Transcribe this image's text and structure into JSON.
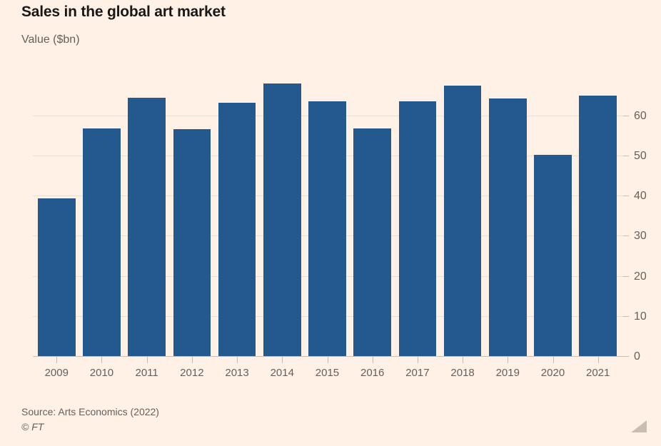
{
  "header": {
    "title": "Sales in the global art market",
    "subtitle": "Value ($bn)"
  },
  "chart_data": {
    "type": "bar",
    "title": "Sales in the global art market",
    "ylabel": "Value ($bn)",
    "categories": [
      "2009",
      "2010",
      "2011",
      "2012",
      "2013",
      "2014",
      "2015",
      "2016",
      "2017",
      "2018",
      "2019",
      "2020",
      "2021"
    ],
    "values": [
      39.5,
      57.0,
      64.6,
      56.7,
      63.3,
      68.2,
      63.8,
      56.9,
      63.7,
      67.7,
      64.4,
      50.3,
      65.1
    ],
    "ylim": [
      0,
      71.2
    ],
    "yticks": [
      0,
      10,
      20,
      30,
      40,
      50,
      60
    ],
    "grid": true,
    "y_axis_position": "right",
    "legend": "none",
    "bar_color": "#24598F",
    "background_color": "#FFF1E5",
    "gridline_color": "#ECDFD2",
    "axis_color": "#C9BEB3",
    "tick_label_color": "#66605C"
  },
  "footer": {
    "source": "Source: Arts Economics (2022)",
    "copyright": "© FT"
  }
}
